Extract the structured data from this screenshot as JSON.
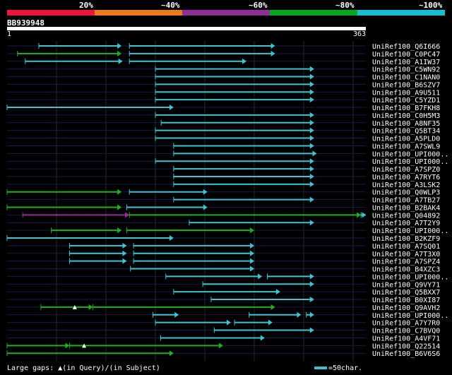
{
  "chart_data": {
    "type": "alignment",
    "legend": {
      "colors": [
        "#e8173a",
        "#e87a1e",
        "#8e2f96",
        "#0aa51e",
        "#17bed0"
      ],
      "labels": [
        "20%",
        "~40%",
        "~60%",
        "~80%",
        "~100%"
      ]
    },
    "query": {
      "id": "BB939948",
      "start": "1",
      "end": "363",
      "length": 363
    },
    "hits": [
      {
        "name": "UniRef100_Q6I666",
        "segments": [
          {
            "s": 61,
            "e": 220,
            "c": "cyan"
          },
          {
            "s": 235,
            "e": 515,
            "c": "cyan"
          }
        ]
      },
      {
        "name": "UniRef100_C0PC47",
        "segments": [
          {
            "s": 20,
            "e": 220,
            "c": "green"
          },
          {
            "s": 235,
            "e": 515,
            "c": "cyan"
          }
        ]
      },
      {
        "name": "UniRef100_A1IW37",
        "segments": [
          {
            "s": 35,
            "e": 222,
            "c": "cyan"
          },
          {
            "s": 235,
            "e": 460,
            "c": "cyan"
          }
        ]
      },
      {
        "name": "UniRef100_C5WN92",
        "segments": [
          {
            "s": 285,
            "e": 590,
            "c": "cyan"
          }
        ]
      },
      {
        "name": "UniRef100_C1NAN0",
        "segments": [
          {
            "s": 285,
            "e": 590,
            "c": "cyan"
          }
        ]
      },
      {
        "name": "UniRef100_B6SZV7",
        "segments": [
          {
            "s": 285,
            "e": 590,
            "c": "cyan"
          }
        ]
      },
      {
        "name": "UniRef100_A9U511",
        "segments": [
          {
            "s": 285,
            "e": 590,
            "c": "cyan"
          }
        ]
      },
      {
        "name": "UniRef100_C5YZD1",
        "segments": [
          {
            "s": 285,
            "e": 590,
            "c": "cyan"
          }
        ]
      },
      {
        "name": "UniRef100_B7FKH8",
        "segments": [
          {
            "s": 0,
            "e": 320,
            "c": "cyan"
          }
        ]
      },
      {
        "name": "UniRef100_C0H5M3",
        "segments": [
          {
            "s": 285,
            "e": 590,
            "c": "cyan"
          }
        ]
      },
      {
        "name": "UniRef100_A8NF35",
        "segments": [
          {
            "s": 296,
            "e": 590,
            "c": "cyan"
          }
        ]
      },
      {
        "name": "UniRef100_Q5BT34",
        "segments": [
          {
            "s": 285,
            "e": 590,
            "c": "cyan"
          }
        ]
      },
      {
        "name": "UniRef100_A5PLD0",
        "segments": [
          {
            "s": 285,
            "e": 590,
            "c": "cyan"
          }
        ]
      },
      {
        "name": "UniRef100_A7SWL9",
        "segments": [
          {
            "s": 320,
            "e": 590,
            "c": "cyan"
          }
        ]
      },
      {
        "name": "UniRef100_UPI000..",
        "segments": [
          {
            "s": 320,
            "e": 595,
            "c": "cyan"
          }
        ]
      },
      {
        "name": "UniRef100_UPI000..",
        "segments": [
          {
            "s": 285,
            "e": 590,
            "c": "cyan"
          }
        ]
      },
      {
        "name": "UniRef100_A7SPZ0",
        "segments": [
          {
            "s": 320,
            "e": 590,
            "c": "cyan"
          }
        ]
      },
      {
        "name": "UniRef100_A7RYT6",
        "segments": [
          {
            "s": 320,
            "e": 590,
            "c": "cyan"
          }
        ]
      },
      {
        "name": "UniRef100_A3LSK2",
        "segments": [
          {
            "s": 320,
            "e": 590,
            "c": "cyan"
          }
        ]
      },
      {
        "name": "UniRef100_Q0WLP3",
        "segments": [
          {
            "s": 0,
            "e": 220,
            "c": "green"
          },
          {
            "s": 235,
            "e": 385,
            "c": "cyan"
          }
        ]
      },
      {
        "name": "UniRef100_A7TB27",
        "segments": [
          {
            "s": 320,
            "e": 590,
            "c": "cyan"
          }
        ]
      },
      {
        "name": "UniRef100_B2BAK4",
        "segments": [
          {
            "s": 0,
            "e": 220,
            "c": "green"
          },
          {
            "s": 230,
            "e": 385,
            "c": "cyan"
          }
        ]
      },
      {
        "name": "UniRef100_Q04892",
        "segments": [
          {
            "s": 30,
            "e": 235,
            "c": "purple"
          },
          {
            "s": 235,
            "e": 680,
            "c": "green"
          },
          {
            "s": 680,
            "e": 690,
            "c": "cyan"
          }
        ]
      },
      {
        "name": "UniRef100_A7T2Y9",
        "segments": [
          {
            "s": 350,
            "e": 590,
            "c": "cyan"
          }
        ]
      },
      {
        "name": "UniRef100_UPI000..",
        "segments": [
          {
            "s": 85,
            "e": 220,
            "c": "green"
          },
          {
            "s": 230,
            "e": 475,
            "c": "green"
          }
        ]
      },
      {
        "name": "UniRef100_B2KZF9",
        "segments": [
          {
            "s": 0,
            "e": 320,
            "c": "cyan"
          }
        ]
      },
      {
        "name": "UniRef100_A7SQ01",
        "segments": [
          {
            "s": 120,
            "e": 230,
            "c": "cyan"
          },
          {
            "s": 243,
            "e": 475,
            "c": "cyan"
          }
        ]
      },
      {
        "name": "UniRef100_A7T3X0",
        "segments": [
          {
            "s": 120,
            "e": 230,
            "c": "cyan"
          },
          {
            "s": 243,
            "e": 475,
            "c": "cyan"
          }
        ]
      },
      {
        "name": "UniRef100_A7SPZ4",
        "segments": [
          {
            "s": 120,
            "e": 230,
            "c": "cyan"
          },
          {
            "s": 243,
            "e": 475,
            "c": "cyan"
          }
        ]
      },
      {
        "name": "UniRef100_B4XZC3",
        "segments": [
          {
            "s": 237,
            "e": 475,
            "c": "cyan"
          }
        ]
      },
      {
        "name": "UniRef100_UPI000..",
        "segments": [
          {
            "s": 305,
            "e": 490,
            "c": "cyan"
          },
          {
            "s": 500,
            "e": 590,
            "c": "cyan"
          }
        ]
      },
      {
        "name": "UniRef100_Q9VY71",
        "segments": [
          {
            "s": 376,
            "e": 590,
            "c": "cyan"
          }
        ]
      },
      {
        "name": "UniRef100_Q5BXX7",
        "segments": [
          {
            "s": 320,
            "e": 525,
            "c": "cyan"
          }
        ]
      },
      {
        "name": "UniRef100_B0XI87",
        "segments": [
          {
            "s": 392,
            "e": 590,
            "c": "cyan"
          }
        ]
      },
      {
        "name": "UniRef100_Q9AVH2",
        "segments": [
          {
            "s": 65,
            "e": 165,
            "c": "green"
          },
          {
            "s": 165,
            "e": 515,
            "c": "green"
          }
        ]
      },
      {
        "name": "UniRef100_UPI000..",
        "segments": [
          {
            "s": 280,
            "e": 330,
            "c": "cyan"
          },
          {
            "s": 465,
            "e": 565,
            "c": "cyan"
          },
          {
            "s": 575,
            "e": 590,
            "c": "cyan"
          }
        ]
      },
      {
        "name": "UniRef100_A7Y7R0",
        "segments": [
          {
            "s": 285,
            "e": 430,
            "c": "cyan"
          },
          {
            "s": 437,
            "e": 510,
            "c": "cyan"
          }
        ]
      },
      {
        "name": "UniRef100_C7BVQ0",
        "segments": [
          {
            "s": 398,
            "e": 590,
            "c": "cyan"
          }
        ]
      },
      {
        "name": "UniRef100_A4VF71",
        "segments": [
          {
            "s": 295,
            "e": 495,
            "c": "cyan"
          }
        ]
      },
      {
        "name": "UniRef100_Q22514",
        "segments": [
          {
            "s": 0,
            "e": 120,
            "c": "green"
          },
          {
            "s": 120,
            "e": 415,
            "c": "green"
          }
        ]
      },
      {
        "name": "UniRef100_B6V6S6",
        "segments": [
          {
            "s": 0,
            "e": 320,
            "c": "green"
          }
        ]
      }
    ],
    "query_gaps": [
      {
        "row": 34,
        "at": 130
      },
      {
        "row": 39,
        "at": 148
      }
    ],
    "footer": {
      "gaps_label": "Large gaps:",
      "gaps_query": "(in Query)/",
      "gaps_subject": "(in Subject)",
      "scale_label": "=50char."
    }
  }
}
